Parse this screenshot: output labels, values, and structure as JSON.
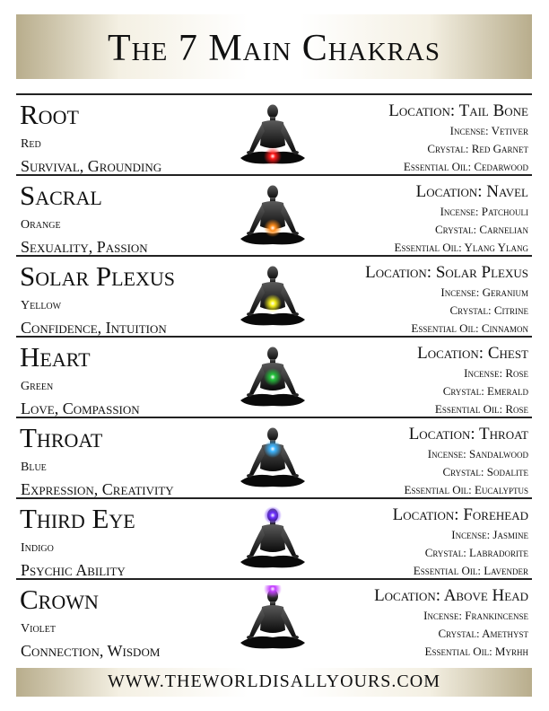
{
  "header": {
    "title": "The 7 Main Chakras"
  },
  "footer": {
    "website": "WWW.THEWORLDISALLYOURS.COM"
  },
  "chakras": [
    {
      "name": "Root",
      "color_name": "Red",
      "keywords": "Survival, Grounding",
      "location": "Location: Tail Bone",
      "incense": "Incense: Vetiver",
      "crystal": "Crystal: Red Garnet",
      "oil": "Essential Oil: Cedarwood",
      "glow_color": "#ff1a1a",
      "glow_position": "base"
    },
    {
      "name": "Sacral",
      "color_name": "Orange",
      "keywords": "Sexuality, Passion",
      "location": "Location: Navel",
      "incense": "Incense: Patchouli",
      "crystal": "Crystal: Carnelian",
      "oil": "Essential Oil: Ylang Ylang",
      "glow_color": "#ff8c1a",
      "glow_position": "navel"
    },
    {
      "name": "Solar Plexus",
      "color_name": "Yellow",
      "keywords": "Confidence, Intuition",
      "location": "Location: Solar Plexus",
      "incense": "Incense: Geranium",
      "crystal": "Crystal: Citrine",
      "oil": "Essential Oil: Cinnamon",
      "glow_color": "#f5f01a",
      "glow_position": "solar-plexus"
    },
    {
      "name": "Heart",
      "color_name": "Green",
      "keywords": "Love, Compassion",
      "location": "Location: Chest",
      "incense": "Incense: Rose",
      "crystal": "Crystal: Emerald",
      "oil": "Essential Oil: Rose",
      "glow_color": "#22c23a",
      "glow_position": "chest"
    },
    {
      "name": "Throat",
      "color_name": "Blue",
      "keywords": "Expression, Creativity",
      "location": "Location: Throat",
      "incense": "Incense: Sandalwood",
      "crystal": "Crystal: Sodalite",
      "oil": "Essential Oil: Eucalyptus",
      "glow_color": "#3ab4ff",
      "glow_position": "throat"
    },
    {
      "name": "Third Eye",
      "color_name": "Indigo",
      "keywords": "Psychic Ability",
      "location": "Location: Forehead",
      "incense": "Incense: Jasmine",
      "crystal": "Crystal: Labradorite",
      "oil": "Essential Oil: Lavender",
      "glow_color": "#6a2cff",
      "glow_position": "forehead"
    },
    {
      "name": "Crown",
      "color_name": "Violet",
      "keywords": "Connection, Wisdom",
      "location": "Location: Above Head",
      "incense": "Incense: Frankincense",
      "crystal": "Crystal: Amethyst",
      "oil": "Essential Oil: Myrhh",
      "glow_color": "#c23cff",
      "glow_position": "crown"
    }
  ]
}
